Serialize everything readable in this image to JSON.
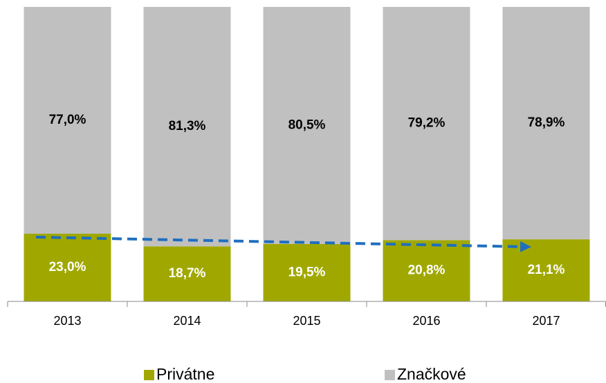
{
  "chart_data": {
    "type": "stacked_bar",
    "categories": [
      "2013",
      "2014",
      "2015",
      "2016",
      "2017"
    ],
    "series": [
      {
        "name": "Privátne",
        "color": "#a0a800",
        "values": [
          23.0,
          18.7,
          19.5,
          20.8,
          21.1
        ],
        "value_labels": [
          "23,0%",
          "18,7%",
          "19,5%",
          "20,8%",
          "21,1%"
        ]
      },
      {
        "name": "Značkové",
        "color": "#c0c0c0",
        "values": [
          77.0,
          81.3,
          80.5,
          79.2,
          78.9
        ],
        "value_labels": [
          "77,0%",
          "81,3%",
          "80,5%",
          "79,2%",
          "78,9%"
        ]
      }
    ],
    "ylim": [
      0,
      100
    ],
    "legend": "bottom"
  }
}
